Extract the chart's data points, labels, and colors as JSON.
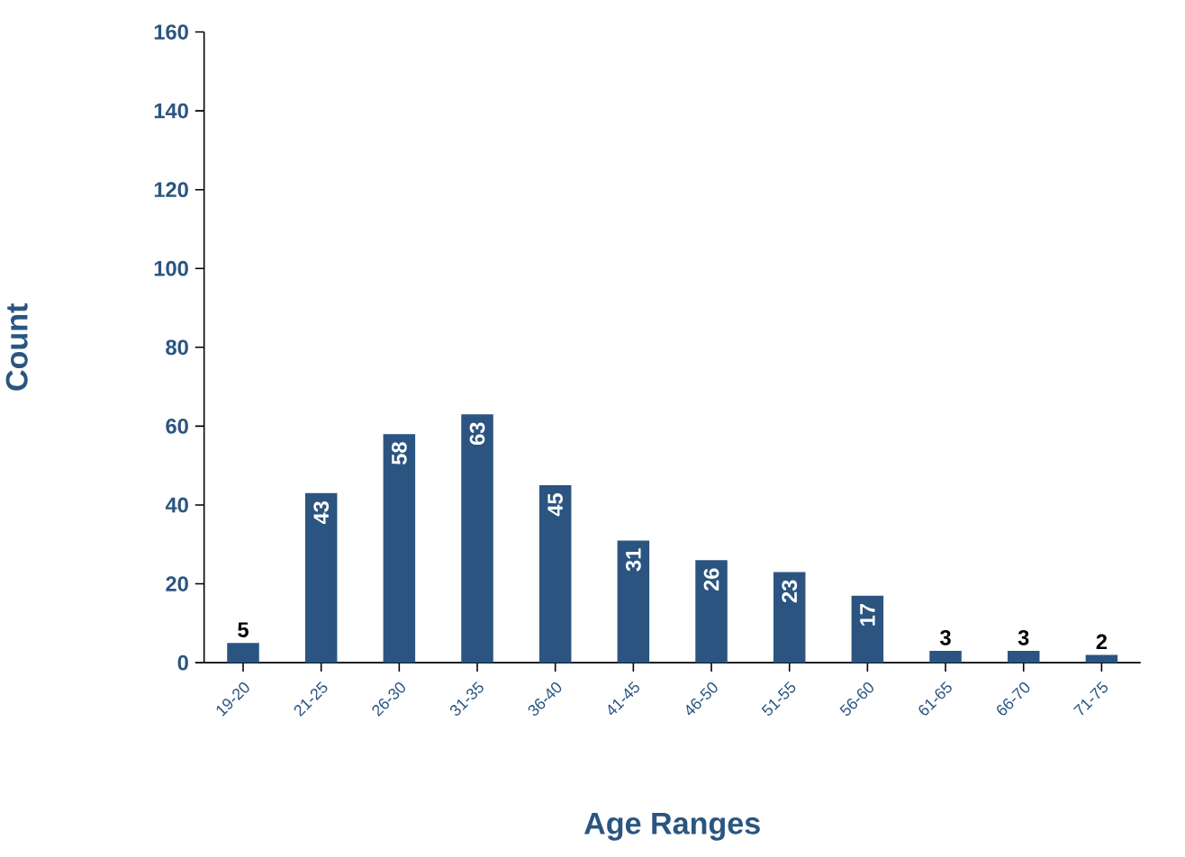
{
  "chart_data": {
    "type": "bar",
    "xlabel": "Age Ranges",
    "ylabel": "Count",
    "categories": [
      "19-20",
      "21-25",
      "26-30",
      "31-35",
      "36-40",
      "41-45",
      "46-50",
      "51-55",
      "56-60",
      "61-65",
      "66-70",
      "71-75"
    ],
    "values": [
      5,
      43,
      58,
      63,
      45,
      31,
      26,
      23,
      17,
      3,
      3,
      2
    ],
    "color": "#2b5580",
    "ylim": [
      0,
      160
    ],
    "yticks": [
      0,
      20,
      40,
      60,
      80,
      100,
      120,
      140,
      160
    ],
    "data_labels": true,
    "grid": false
  }
}
